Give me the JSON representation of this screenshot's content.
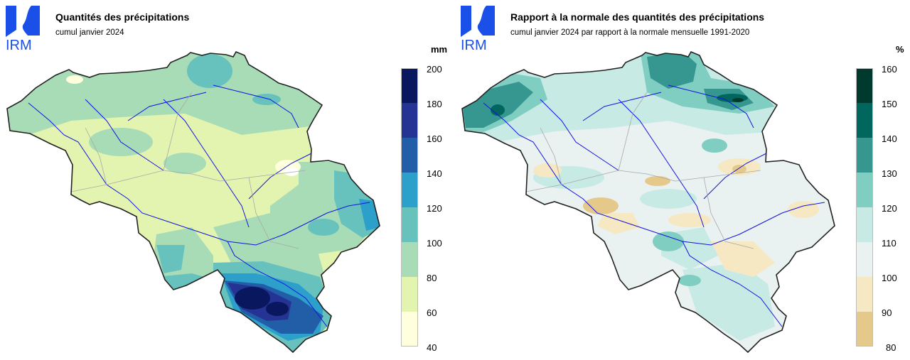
{
  "left": {
    "logo_text": "IRM",
    "title": "Quantités des précipitations",
    "subtitle": "cumul janvier 2024",
    "unit": "mm",
    "legend": {
      "ticks": [
        "200",
        "180",
        "160",
        "140",
        "120",
        "100",
        "80",
        "60",
        "40"
      ],
      "colors": [
        "#08175e",
        "#253494",
        "#225ea8",
        "#2c9fcb",
        "#67c1bd",
        "#a8dcb6",
        "#e3f4b1",
        "#ffffdd"
      ]
    }
  },
  "right": {
    "logo_text": "IRM",
    "title": "Rapport à la normale des quantités des précipitations",
    "subtitle": "cumul janvier 2024 par rapport à la normale mensuelle 1991-2020",
    "unit": "%",
    "legend": {
      "ticks": [
        "160",
        "150",
        "140",
        "130",
        "120",
        "110",
        "100",
        "90",
        "80"
      ],
      "colors": [
        "#00392d",
        "#01665e",
        "#35978f",
        "#80cdc1",
        "#c7eae5",
        "#e9f1f1",
        "#f6e8c3",
        "#e5c98b"
      ]
    }
  }
}
